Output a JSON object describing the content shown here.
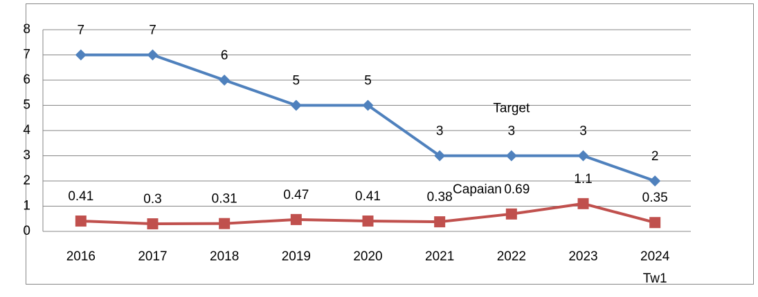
{
  "chart_data": {
    "type": "line",
    "categories": [
      "2016",
      "2017",
      "2018",
      "2019",
      "2020",
      "2021",
      "2022",
      "2023",
      "2024\nTw1"
    ],
    "series": [
      {
        "name": "Target",
        "color": "#4f81bd",
        "marker": "diamond",
        "values": [
          7,
          7,
          6,
          5,
          5,
          3,
          3,
          3,
          2
        ]
      },
      {
        "name": "Capaian",
        "color": "#c0504d",
        "marker": "square",
        "values": [
          0.41,
          0.3,
          0.31,
          0.47,
          0.41,
          0.38,
          0.69,
          1.1,
          0.35
        ]
      }
    ],
    "ylim": [
      0,
      8
    ],
    "yticks": [
      0,
      1,
      2,
      3,
      4,
      5,
      6,
      7,
      8
    ],
    "grid": true,
    "legend": false
  }
}
